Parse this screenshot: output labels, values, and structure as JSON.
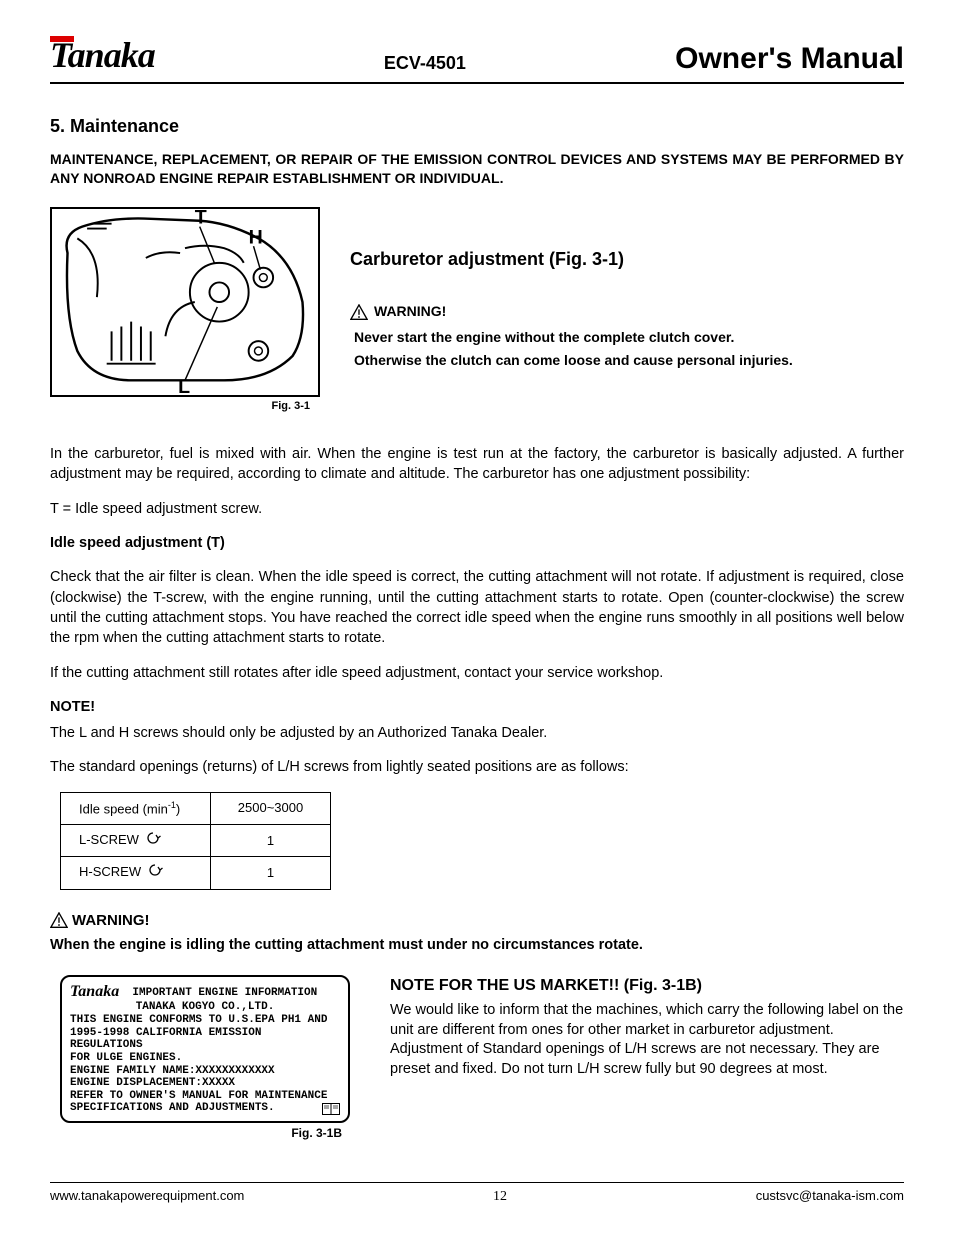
{
  "header": {
    "brand": "Tanaka",
    "model": "ECV-4501",
    "doc_title": "Owner's Manual"
  },
  "section": {
    "number": "5.",
    "title": "Maintenance",
    "emission_notice": "MAINTENANCE, REPLACEMENT, OR REPAIR OF THE EMISSION CONTROL DEVICES AND SYSTEMS MAY BE PERFORMED BY ANY NONROAD ENGINE REPAIR ESTABLISHMENT OR INDIVIDUAL."
  },
  "fig31": {
    "caption": "Fig. 3-1",
    "label_T": "T",
    "label_H": "H",
    "label_L": "L"
  },
  "carb": {
    "heading": "Carburetor adjustment (Fig. 3-1)",
    "warn_label": "WARNING!",
    "warn_line1": "Never start the engine without the complete clutch cover.",
    "warn_line2": "Otherwise the clutch can come loose and cause personal injuries."
  },
  "paras": {
    "p1": "In the carburetor, fuel is mixed with air. When the engine is test run at the factory, the carburetor is basically adjusted. A further adjustment may be required, according to climate and altitude. The carburetor has one adjustment possibility:",
    "t_def": "T = Idle speed adjustment screw.",
    "idle_heading": "Idle speed adjustment (T)",
    "idle_body": "Check that the air filter is clean. When the idle speed is correct, the cutting attachment will not rotate. If adjustment is required, close (clockwise) the T-screw, with the engine running, until the cutting attachment starts to rotate. Open (counter-clockwise) the screw until the cutting attachment stops. You have reached the correct idle speed when the engine runs smoothly in all positions well below the rpm when the cutting attachment starts to rotate.",
    "idle_contact": "If the cutting attachment still rotates after idle speed adjustment, contact your service workshop.",
    "note_label": "NOTE!",
    "note_line1": "The L and H screws should only be adjusted by an Authorized Tanaka Dealer.",
    "note_line2": "The standard openings (returns) of L/H screws from lightly seated positions are as follows:"
  },
  "screw_table": {
    "rows": [
      {
        "label_html": "Idle speed (min<span class='sup'>-1</span>)",
        "value": "2500~3000"
      },
      {
        "label_html": "L-SCREW",
        "value": "1",
        "icon": true
      },
      {
        "label_html": "H-SCREW",
        "value": "1",
        "icon": true
      }
    ]
  },
  "warn2": {
    "label": "WARNING!",
    "body": "When the engine is idling the cutting attachment must under no circumstances rotate."
  },
  "us": {
    "heading": "NOTE FOR THE US MARKET!!  (Fig. 3-1B)",
    "body": "We would like to inform that the machines, which carry the following label on the unit are different from ones for other market in carburetor adjustment.  Adjustment of Standard openings of L/H screws are not necessary. They are preset and fixed. Do not turn L/H screw fully but 90 degrees at most."
  },
  "label_plate": {
    "caption": "Fig. 3-1B",
    "logo": "Tanaka",
    "title": "IMPORTANT ENGINE INFORMATION",
    "company": "TANAKA KOGYO CO.,LTD.",
    "line1": "THIS ENGINE CONFORMS TO U.S.EPA PH1 AND",
    "line2": "1995-1998 CALIFORNIA EMISSION REGULATIONS",
    "line3": "FOR ULGE ENGINES.",
    "line4": "ENGINE FAMILY NAME:XXXXXXXXXXXX",
    "line5": "ENGINE DISPLACEMENT:XXXXX",
    "line6": "REFER TO OWNER'S MANUAL FOR MAINTENANCE",
    "line7": "SPECIFICATIONS AND ADJUSTMENTS."
  },
  "footer": {
    "url": "www.tanakapowerequipment.com",
    "page": "12",
    "email": "custsvc@tanaka-ism.com"
  }
}
